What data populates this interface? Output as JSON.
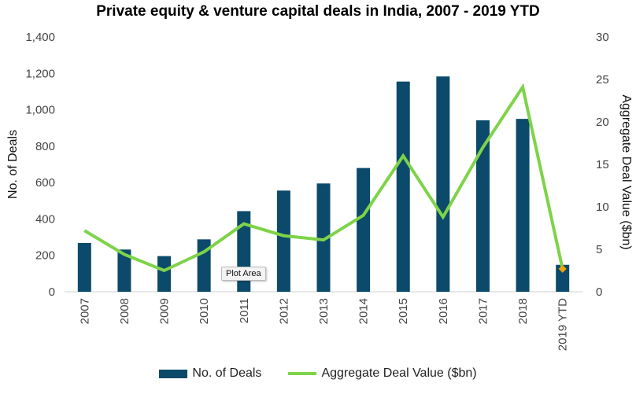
{
  "chart_data": {
    "type": "bar",
    "title": "Private equity & venture capital deals in India, 2007 - 2019 YTD",
    "categories": [
      "2007",
      "2008",
      "2009",
      "2010",
      "2011",
      "2012",
      "2013",
      "2014",
      "2015",
      "2016",
      "2017",
      "2018",
      "2019 YTD"
    ],
    "series": [
      {
        "name": "No. of Deals",
        "type": "bar",
        "axis": "left",
        "color": "#0b4a6b",
        "values": [
          268,
          232,
          196,
          288,
          443,
          556,
          595,
          680,
          1155,
          1183,
          942,
          950,
          148
        ]
      },
      {
        "name": "Aggregate Deal Value ($bn)",
        "type": "line",
        "axis": "right",
        "color": "#7ed348",
        "values": [
          7.2,
          4.4,
          2.5,
          4.7,
          8.0,
          6.6,
          6.1,
          9.0,
          16.0,
          8.8,
          17.0,
          24.1,
          2.7
        ]
      }
    ],
    "ylabel": "No. of Deals",
    "y2label": "Aggregate Deal Value ($bn)",
    "ylim": [
      0,
      1400
    ],
    "y2lim": [
      0,
      30
    ],
    "yticks": [
      "0",
      "200",
      "400",
      "600",
      "800",
      "1,000",
      "1,200",
      "1,400"
    ],
    "y2ticks": [
      "0",
      "5",
      "10",
      "15",
      "20",
      "25",
      "30"
    ],
    "grid": false,
    "legend": "bottom",
    "highlight_marker_color": "#f0a30a"
  },
  "tooltip": "Plot Area"
}
